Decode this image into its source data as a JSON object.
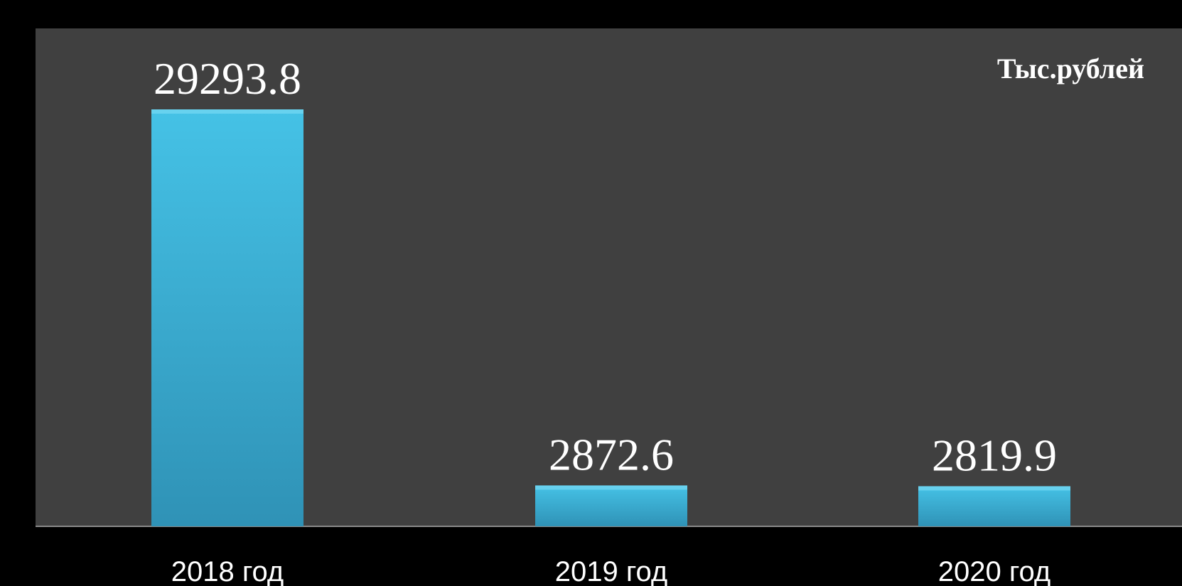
{
  "chart_data": {
    "type": "bar",
    "categories": [
      "2018 год",
      "2019 год",
      "2020 год"
    ],
    "values": [
      29293.8,
      2872.6,
      2819.9
    ],
    "value_labels": [
      "29293.8",
      "2872.6",
      "2819.9"
    ],
    "unit_label": "Тыс.рублей",
    "title": "",
    "xlabel": "",
    "ylabel": "",
    "ylim": [
      0,
      29293.8
    ],
    "grid": false,
    "legend": "none",
    "colors": {
      "page_background": "#000000",
      "plot_background": "#404040",
      "bar_top": "#45c2e6",
      "bar_bottom": "#2f92b6",
      "baseline": "#8a8a8a",
      "text": "#ffffff"
    }
  }
}
